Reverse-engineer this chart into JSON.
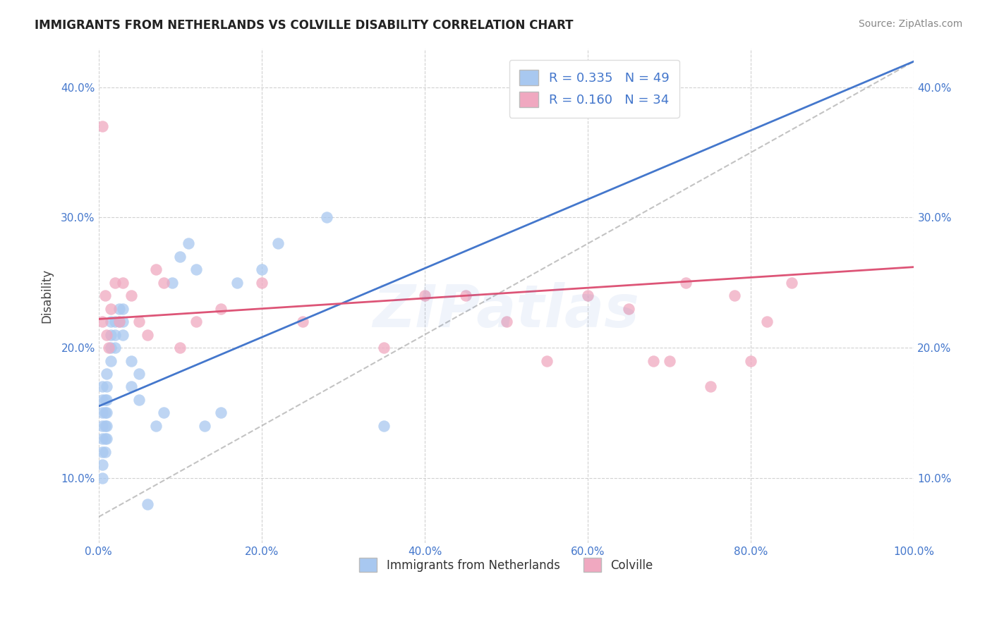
{
  "title": "IMMIGRANTS FROM NETHERLANDS VS COLVILLE DISABILITY CORRELATION CHART",
  "source": "Source: ZipAtlas.com",
  "xlabel": "",
  "ylabel": "Disability",
  "xlim": [
    0,
    1.0
  ],
  "ylim": [
    0.05,
    0.43
  ],
  "ytick_labels": [
    "10.0%",
    "20.0%",
    "30.0%",
    "40.0%"
  ],
  "ytick_values": [
    0.1,
    0.2,
    0.3,
    0.4
  ],
  "xtick_labels": [
    "0.0%",
    "20.0%",
    "40.0%",
    "60.0%",
    "80.0%",
    "100.0%"
  ],
  "xtick_values": [
    0.0,
    0.2,
    0.4,
    0.6,
    0.8,
    1.0
  ],
  "legend_bottom_labels": [
    "Immigrants from Netherlands",
    "Colville"
  ],
  "blue_r": 0.335,
  "blue_n": 49,
  "pink_r": 0.16,
  "pink_n": 34,
  "blue_color": "#a8c8f0",
  "pink_color": "#f0a8c0",
  "blue_line_color": "#4477cc",
  "pink_line_color": "#dd5577",
  "gray_line_color": "#aaaaaa",
  "watermark": "ZIPatlas",
  "blue_scatter_x": [
    0.005,
    0.005,
    0.005,
    0.005,
    0.005,
    0.005,
    0.005,
    0.005,
    0.008,
    0.008,
    0.008,
    0.008,
    0.008,
    0.01,
    0.01,
    0.01,
    0.01,
    0.01,
    0.01,
    0.015,
    0.015,
    0.015,
    0.015,
    0.02,
    0.02,
    0.02,
    0.025,
    0.025,
    0.03,
    0.03,
    0.03,
    0.04,
    0.04,
    0.05,
    0.05,
    0.06,
    0.07,
    0.08,
    0.09,
    0.1,
    0.11,
    0.12,
    0.13,
    0.15,
    0.17,
    0.2,
    0.22,
    0.28,
    0.35
  ],
  "blue_scatter_y": [
    0.14,
    0.15,
    0.16,
    0.17,
    0.13,
    0.12,
    0.11,
    0.1,
    0.15,
    0.16,
    0.14,
    0.13,
    0.12,
    0.16,
    0.17,
    0.15,
    0.14,
    0.13,
    0.18,
    0.22,
    0.21,
    0.2,
    0.19,
    0.22,
    0.21,
    0.2,
    0.23,
    0.22,
    0.22,
    0.23,
    0.21,
    0.17,
    0.19,
    0.16,
    0.18,
    0.08,
    0.14,
    0.15,
    0.25,
    0.27,
    0.28,
    0.26,
    0.14,
    0.15,
    0.25,
    0.26,
    0.28,
    0.3,
    0.14
  ],
  "pink_scatter_x": [
    0.005,
    0.005,
    0.008,
    0.01,
    0.012,
    0.015,
    0.02,
    0.025,
    0.03,
    0.04,
    0.05,
    0.06,
    0.07,
    0.08,
    0.1,
    0.12,
    0.15,
    0.2,
    0.25,
    0.35,
    0.4,
    0.45,
    0.5,
    0.55,
    0.6,
    0.65,
    0.68,
    0.7,
    0.72,
    0.75,
    0.78,
    0.8,
    0.82,
    0.85
  ],
  "pink_scatter_y": [
    0.37,
    0.22,
    0.24,
    0.21,
    0.2,
    0.23,
    0.25,
    0.22,
    0.25,
    0.24,
    0.22,
    0.21,
    0.26,
    0.25,
    0.2,
    0.22,
    0.23,
    0.25,
    0.22,
    0.2,
    0.24,
    0.24,
    0.22,
    0.19,
    0.24,
    0.23,
    0.19,
    0.19,
    0.25,
    0.17,
    0.24,
    0.19,
    0.22,
    0.25
  ],
  "blue_line_x0": 0.0,
  "blue_line_y0": 0.155,
  "blue_line_x1": 1.0,
  "blue_line_y1": 0.42,
  "pink_line_x0": 0.0,
  "pink_line_y0": 0.222,
  "pink_line_x1": 1.0,
  "pink_line_y1": 0.262,
  "gray_line_x0": 0.0,
  "gray_line_y0": 0.07,
  "gray_line_x1": 1.0,
  "gray_line_y1": 0.42
}
